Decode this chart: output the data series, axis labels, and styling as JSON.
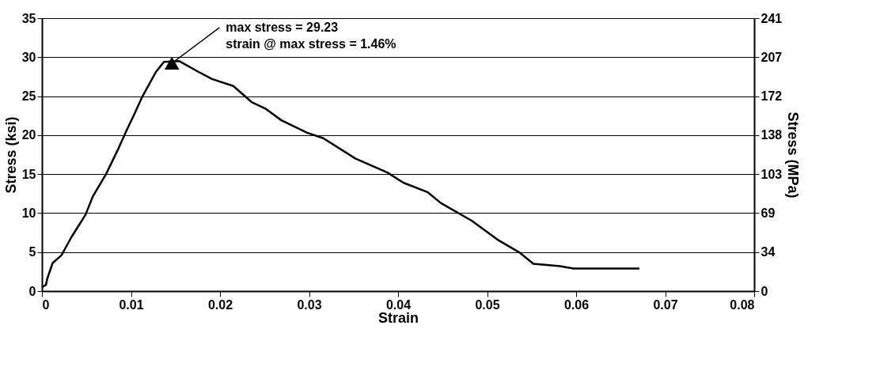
{
  "chart_data": {
    "type": "line",
    "xlabel": "Strain",
    "ylabel": "Stress (ksi)",
    "y2label": "Stress (MPa)",
    "x": [
      0,
      0.00045,
      0.0006,
      0.0012,
      0.0022,
      0.0033,
      0.0049,
      0.0057,
      0.0072,
      0.0086,
      0.0095,
      0.0103,
      0.0113,
      0.0128,
      0.0137,
      0.0154,
      0.0176,
      0.0191,
      0.0215,
      0.0236,
      0.0251,
      0.0269,
      0.0298,
      0.0316,
      0.0352,
      0.0388,
      0.0406,
      0.0433,
      0.0448,
      0.0483,
      0.0513,
      0.0537,
      0.0552,
      0.0582,
      0.0597,
      0.0642,
      0.0671
    ],
    "series": [
      {
        "color": "#000000",
        "values": [
          0.5,
          0.8,
          1.6,
          3.6,
          4.6,
          6.9,
          9.8,
          12.1,
          15.0,
          18.3,
          20.6,
          22.5,
          25.0,
          28.1,
          29.4,
          29.5,
          28.1,
          27.2,
          26.3,
          24.2,
          23.4,
          21.9,
          20.3,
          19.6,
          17.0,
          15.2,
          13.9,
          12.7,
          11.3,
          9.0,
          6.5,
          4.9,
          3.5,
          3.2,
          2.9,
          2.9,
          2.9
        ]
      },
      {
        "type": "scatter",
        "marker": "triangle",
        "color": "#000000",
        "x": [
          0.0146
        ],
        "values": [
          29.23
        ]
      }
    ],
    "xlim": [
      0,
      0.08
    ],
    "xticks": [
      0,
      0.01,
      0.02,
      0.03,
      0.04,
      0.05,
      0.06,
      0.07,
      0.08
    ],
    "ylim": [
      0,
      35
    ],
    "yticks": [
      0,
      5,
      10,
      15,
      20,
      25,
      30,
      35
    ],
    "y2lim": [
      0,
      241.3
    ],
    "y2ticks": [
      0,
      {
        "value": 34.47,
        "label": "34"
      },
      {
        "value": 68.95,
        "label": "69"
      },
      {
        "value": 103.4,
        "label": "103"
      },
      {
        "value": 137.9,
        "label": "138"
      },
      {
        "value": 172.4,
        "label": "172"
      },
      {
        "value": 206.8,
        "label": "207"
      },
      {
        "value": 241.3,
        "label": "241"
      }
    ],
    "annotations": [
      {
        "text": "max stress = 29.23",
        "x": 0.0146,
        "y": 29.23
      },
      "strain @ max stress = 1.46%"
    ],
    "grid": "y",
    "marker": "none",
    "line_style": "solid",
    "legend": false
  }
}
